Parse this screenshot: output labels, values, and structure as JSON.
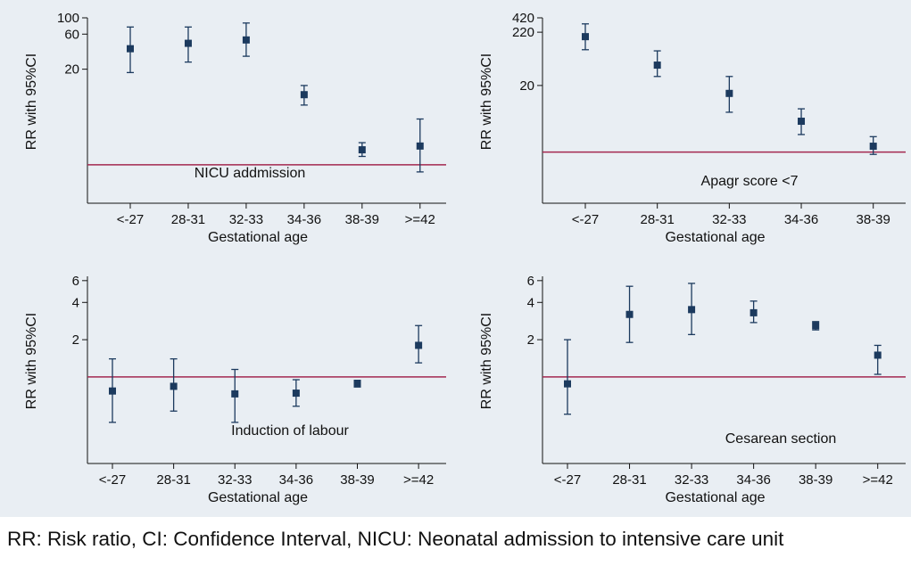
{
  "footnote": "RR: Risk ratio, CI: Confidence Interval, NICU: Neonatal admission to intensive care unit",
  "chart_data": [
    {
      "type": "scatter",
      "title": "",
      "annotation": "NICU addmission",
      "xlabel": "Gestational age",
      "ylabel": "RR with 95%CI",
      "scale": "log",
      "ylim": [
        0.3,
        100
      ],
      "reference_line": 1,
      "yticks": [
        20,
        60,
        100
      ],
      "ytick_labels": [
        "20",
        "60",
        "100"
      ],
      "categories": [
        "<-27",
        "28-31",
        "32-33",
        "34-36",
        "38-39",
        ">=42"
      ],
      "values": [
        38,
        45,
        50,
        9,
        1.6,
        1.8
      ],
      "ci_low": [
        18,
        25,
        30,
        6.5,
        1.3,
        0.8
      ],
      "ci_high": [
        75,
        75,
        85,
        12,
        2.0,
        4.2
      ]
    },
    {
      "type": "scatter",
      "title": "",
      "annotation": "Apagr score <7",
      "xlabel": "Gestational age",
      "ylabel": "RR with 95%CI",
      "scale": "log",
      "ylim": [
        0.1,
        420
      ],
      "reference_line": 1,
      "yticks": [
        20,
        220,
        420
      ],
      "ytick_labels": [
        "20",
        "220",
        "420"
      ],
      "categories": [
        "<-27",
        "28-31",
        "32-33",
        "34-36",
        "38-39"
      ],
      "values": [
        180,
        50,
        14,
        4,
        1.3
      ],
      "ci_low": [
        100,
        30,
        6,
        2.2,
        0.9
      ],
      "ci_high": [
        320,
        95,
        30,
        7,
        2.0
      ]
    },
    {
      "type": "scatter",
      "title": "",
      "annotation": "Induction of labour",
      "xlabel": "Gestational age",
      "ylabel": "RR with 95%CI",
      "scale": "log",
      "ylim": [
        0.2,
        6.5
      ],
      "reference_line": 1,
      "yticks": [
        2,
        4,
        6
      ],
      "ytick_labels": [
        "2",
        "4",
        "6"
      ],
      "categories": [
        "<-27",
        "28-31",
        "32-33",
        "34-36",
        "38-39",
        ">=42"
      ],
      "values": [
        0.77,
        0.84,
        0.73,
        0.74,
        0.88,
        1.8
      ],
      "ci_low": [
        0.43,
        0.53,
        0.43,
        0.58,
        0.83,
        1.3
      ],
      "ci_high": [
        1.4,
        1.4,
        1.15,
        0.95,
        0.94,
        2.6
      ]
    },
    {
      "type": "scatter",
      "title": "",
      "annotation": "Cesarean section",
      "xlabel": "Gestational age",
      "ylabel": "RR with 95%CI",
      "scale": "log",
      "ylim": [
        0.2,
        6.5
      ],
      "reference_line": 1,
      "yticks": [
        2,
        4,
        6
      ],
      "ytick_labels": [
        "2",
        "4",
        "6"
      ],
      "categories": [
        "<-27",
        "28-31",
        "32-33",
        "34-36",
        "38-39",
        ">=42"
      ],
      "values": [
        0.88,
        3.2,
        3.5,
        3.3,
        2.6,
        1.5
      ],
      "ci_low": [
        0.5,
        1.9,
        2.2,
        2.75,
        2.4,
        1.05
      ],
      "ci_high": [
        2.0,
        5.4,
        5.7,
        4.1,
        2.8,
        1.8
      ]
    }
  ]
}
